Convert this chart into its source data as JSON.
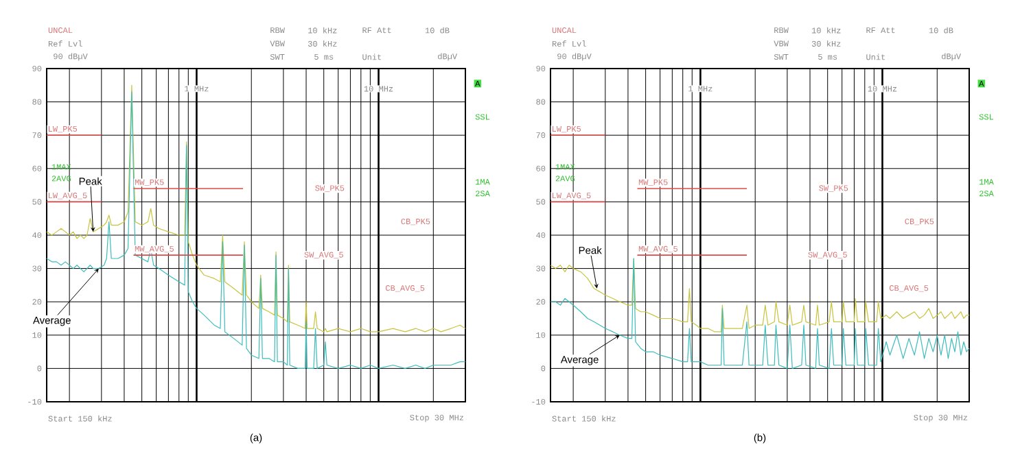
{
  "chart_data": [
    {
      "type": "line",
      "xlim": [
        0.15,
        30
      ],
      "ylim": [
        -10,
        90
      ],
      "log": "x",
      "grid": true,
      "yticks": [
        -10,
        0,
        10,
        20,
        30,
        40,
        50,
        60,
        70,
        80,
        90
      ],
      "xticks": [
        {
          "value": 0.2,
          "label": null
        },
        {
          "value": 0.3,
          "label": null
        },
        {
          "value": 0.4,
          "label": null
        },
        {
          "value": 0.5,
          "label": null
        },
        {
          "value": 0.6,
          "label": null
        },
        {
          "value": 0.7,
          "label": null
        },
        {
          "value": 0.8,
          "label": null
        },
        {
          "value": 0.9,
          "label": null
        },
        {
          "value": 1,
          "label": "1 MHz"
        },
        {
          "value": 2,
          "label": null
        },
        {
          "value": 3,
          "label": null
        },
        {
          "value": 4,
          "label": null
        },
        {
          "value": 5,
          "label": null
        },
        {
          "value": 6,
          "label": null
        },
        {
          "value": 7,
          "label": null
        },
        {
          "value": 8,
          "label": null
        },
        {
          "value": 9,
          "label": null
        },
        {
          "value": 10,
          "label": "10 MHz"
        },
        {
          "value": 20,
          "label": null
        }
      ],
      "series": [
        {
          "color": "#c8c43c",
          "x": [
            0.15,
            0.16,
            0.17,
            0.18,
            0.19,
            0.2,
            0.21,
            0.22,
            0.23,
            0.24,
            0.25,
            0.26,
            0.27,
            0.29,
            0.31,
            0.32,
            0.33,
            0.34,
            0.37,
            0.4,
            0.42,
            0.44,
            0.46,
            0.5,
            0.54,
            0.56,
            0.58,
            0.62,
            0.7,
            0.8,
            0.86,
            0.88,
            0.9,
            0.95,
            1.0,
            1.1,
            1.25,
            1.35,
            1.39,
            1.43,
            1.6,
            1.78,
            1.83,
            1.88,
            2.0,
            2.2,
            2.25,
            2.3,
            2.5,
            2.68,
            2.73,
            2.78,
            3.0,
            3.15,
            3.2,
            3.25,
            3.6,
            3.95,
            4.0,
            4.05,
            4.4,
            4.5,
            4.6,
            5.0,
            5.1,
            5.2,
            6,
            7,
            8,
            9,
            10,
            12,
            14,
            16,
            18,
            20,
            22,
            25,
            28,
            30
          ],
          "values": [
            41,
            40,
            41,
            42,
            41,
            40,
            41,
            39,
            40,
            39,
            40,
            45,
            41,
            42,
            43,
            44,
            46,
            43,
            43,
            44,
            47,
            85,
            44,
            43,
            44,
            48,
            43,
            42,
            41,
            40,
            40,
            68,
            38,
            34,
            31,
            28,
            27,
            26,
            40,
            26,
            24,
            22,
            38,
            22,
            20,
            18,
            28,
            18,
            17,
            16,
            35,
            16,
            15,
            14,
            31,
            14,
            13,
            12,
            20,
            12,
            12,
            17,
            12,
            11,
            12,
            11,
            12,
            11,
            12,
            11,
            11,
            12,
            11,
            12,
            11,
            12,
            11,
            12,
            13,
            12
          ]
        },
        {
          "color": "#3cbcbc",
          "x": [
            0.15,
            0.16,
            0.17,
            0.18,
            0.19,
            0.2,
            0.21,
            0.22,
            0.23,
            0.24,
            0.25,
            0.26,
            0.27,
            0.29,
            0.31,
            0.32,
            0.33,
            0.34,
            0.37,
            0.4,
            0.42,
            0.44,
            0.46,
            0.5,
            0.54,
            0.56,
            0.58,
            0.62,
            0.7,
            0.8,
            0.86,
            0.88,
            0.9,
            0.95,
            1.0,
            1.1,
            1.25,
            1.35,
            1.39,
            1.43,
            1.6,
            1.78,
            1.83,
            1.88,
            2.0,
            2.2,
            2.25,
            2.3,
            2.5,
            2.68,
            2.73,
            2.78,
            3.0,
            3.15,
            3.2,
            3.25,
            3.6,
            3.95,
            4.0,
            4.05,
            4.4,
            4.5,
            4.6,
            5.0,
            5.1,
            5.2,
            6,
            7,
            8,
            9,
            10,
            12,
            14,
            16,
            18,
            20,
            22,
            25,
            28,
            30
          ],
          "values": [
            33,
            32,
            32,
            31,
            32,
            31,
            30,
            31,
            30,
            29,
            30,
            31,
            30,
            30,
            31,
            33,
            44,
            33,
            33,
            34,
            36,
            83,
            34,
            33,
            32,
            36,
            31,
            30,
            28,
            26,
            25,
            67,
            23,
            20,
            18,
            16,
            13,
            12,
            38,
            11,
            9,
            7,
            37,
            6,
            4,
            3,
            27,
            3,
            3,
            2,
            34,
            2,
            2,
            1,
            30,
            1,
            0,
            0,
            14,
            0,
            0,
            12,
            0,
            1,
            8,
            1,
            0,
            1,
            0,
            1,
            0,
            1,
            0,
            1,
            0,
            1,
            1,
            1,
            2,
            2
          ]
        },
        {
          "name": "LW_PK5",
          "color": "#e04848",
          "x": [
            0.15,
            0.3
          ],
          "values": [
            70,
            70
          ]
        },
        {
          "name": "LW_AVG_5",
          "color": "#e04848",
          "x": [
            0.15,
            0.3
          ],
          "values": [
            50,
            50
          ]
        },
        {
          "name": "MW_PK5",
          "color": "#e04848",
          "x": [
            0.45,
            1.8
          ],
          "values": [
            54,
            54
          ]
        },
        {
          "name": "MW_AVG_5",
          "color": "#e04848",
          "x": [
            0.45,
            1.8
          ],
          "values": [
            34,
            34
          ]
        }
      ],
      "annotations": [
        "UNCAL",
        "Ref Lvl",
        "90 dBµV",
        "RBW",
        "10 kHz",
        "RF Att",
        "10 dB",
        "VBW",
        "30 kHz",
        "SWT",
        "5 ms",
        "Unit",
        "dBµV",
        "A",
        "SSL",
        "1MA",
        "2SA",
        "1MAX",
        "2AVG",
        "Start 150 kHz",
        "Stop 30 MHz",
        "(a)",
        "SW_PK5",
        "SW_AVG_5",
        "CB_PK5",
        "CB_AVG_5",
        {
          "text": "Peak",
          "x": 0.27,
          "y": 41
        },
        {
          "text": "Average",
          "x": 0.29,
          "y": 30
        }
      ]
    },
    {
      "type": "line",
      "xlim": [
        0.15,
        30
      ],
      "ylim": [
        -10,
        90
      ],
      "log": "x",
      "grid": true,
      "yticks": [
        -10,
        0,
        10,
        20,
        30,
        40,
        50,
        60,
        70,
        80,
        90
      ],
      "xticks": [
        {
          "value": 0.2,
          "label": null
        },
        {
          "value": 0.3,
          "label": null
        },
        {
          "value": 0.4,
          "label": null
        },
        {
          "value": 0.5,
          "label": null
        },
        {
          "value": 0.6,
          "label": null
        },
        {
          "value": 0.7,
          "label": null
        },
        {
          "value": 0.8,
          "label": null
        },
        {
          "value": 0.9,
          "label": null
        },
        {
          "value": 1,
          "label": "1 MHz"
        },
        {
          "value": 2,
          "label": null
        },
        {
          "value": 3,
          "label": null
        },
        {
          "value": 4,
          "label": null
        },
        {
          "value": 5,
          "label": null
        },
        {
          "value": 6,
          "label": null
        },
        {
          "value": 7,
          "label": null
        },
        {
          "value": 8,
          "label": null
        },
        {
          "value": 9,
          "label": null
        },
        {
          "value": 10,
          "label": "10 MHz"
        },
        {
          "value": 20,
          "label": null
        }
      ],
      "series": [
        {
          "color": "#c8c43c",
          "x": [
            0.15,
            0.16,
            0.17,
            0.18,
            0.19,
            0.2,
            0.22,
            0.24,
            0.26,
            0.28,
            0.3,
            0.33,
            0.36,
            0.4,
            0.42,
            0.43,
            0.44,
            0.47,
            0.5,
            0.55,
            0.6,
            0.7,
            0.8,
            0.85,
            0.87,
            0.89,
            0.95,
            1.0,
            1.1,
            1.2,
            1.3,
            1.32,
            1.35,
            1.5,
            1.7,
            1.8,
            1.85,
            2.0,
            2.2,
            2.27,
            2.35,
            2.55,
            2.6,
            2.7,
            3.0,
            3.1,
            3.2,
            3.6,
            3.7,
            3.8,
            4.3,
            4.4,
            4.5,
            5.1,
            5.25,
            5.4,
            6.0,
            6.1,
            6.3,
            7.0,
            7.1,
            7.3,
            8.0,
            8.1,
            8.4,
            9.3,
            9.5,
            9.8,
            10.5,
            11,
            12,
            13,
            14,
            15,
            16,
            17,
            18,
            19,
            20,
            21,
            22,
            23,
            24,
            25,
            26,
            27,
            28,
            29,
            30
          ],
          "values": [
            31,
            30,
            31,
            29,
            31,
            30,
            29,
            27,
            24,
            23,
            22,
            21,
            20,
            19,
            19,
            33,
            18,
            17,
            17,
            16,
            15,
            15,
            14,
            14,
            24,
            14,
            13,
            12,
            12,
            11,
            11,
            19,
            12,
            12,
            12,
            19,
            12,
            13,
            13,
            19,
            13,
            14,
            20,
            14,
            13,
            19,
            13,
            14,
            19,
            14,
            13,
            19,
            13,
            14,
            20,
            14,
            14,
            20,
            14,
            14,
            21,
            14,
            14,
            20,
            14,
            14,
            20,
            15,
            16,
            15,
            17,
            15,
            16,
            17,
            15,
            16,
            18,
            15,
            16,
            17,
            15,
            16,
            17,
            15,
            16,
            17,
            15,
            16,
            16
          ]
        },
        {
          "color": "#3cbcbc",
          "x": [
            0.15,
            0.16,
            0.17,
            0.18,
            0.19,
            0.2,
            0.22,
            0.24,
            0.26,
            0.28,
            0.3,
            0.33,
            0.36,
            0.4,
            0.42,
            0.43,
            0.44,
            0.47,
            0.5,
            0.55,
            0.6,
            0.7,
            0.8,
            0.85,
            0.87,
            0.89,
            0.95,
            1.0,
            1.1,
            1.2,
            1.3,
            1.32,
            1.35,
            1.5,
            1.7,
            1.8,
            1.85,
            2.0,
            2.2,
            2.27,
            2.35,
            2.55,
            2.6,
            2.7,
            3.0,
            3.1,
            3.2,
            3.6,
            3.7,
            3.8,
            4.3,
            4.4,
            4.5,
            5.1,
            5.25,
            5.4,
            6.0,
            6.1,
            6.3,
            7.0,
            7.1,
            7.3,
            8.0,
            8.1,
            8.4,
            9.3,
            9.5,
            9.8,
            10.5,
            11,
            12,
            13,
            14,
            15,
            16,
            17,
            18,
            19,
            20,
            21,
            22,
            23,
            24,
            25,
            26,
            27,
            28,
            29,
            30
          ],
          "values": [
            20,
            20,
            19,
            21,
            20,
            19,
            17,
            15,
            14,
            13,
            12,
            11,
            10,
            9,
            9,
            33,
            8,
            6,
            5,
            5,
            4,
            3,
            2,
            2,
            12,
            2,
            2,
            2,
            1,
            1,
            1,
            18,
            1,
            1,
            1,
            14,
            1,
            1,
            1,
            13,
            1,
            1,
            13,
            1,
            0,
            13,
            0,
            1,
            13,
            1,
            0,
            12,
            1,
            0,
            12,
            1,
            1,
            12,
            1,
            1,
            12,
            1,
            1,
            12,
            1,
            1,
            12,
            2,
            8,
            4,
            10,
            3,
            9,
            4,
            11,
            3,
            9,
            5,
            10,
            4,
            10,
            3,
            9,
            5,
            11,
            4,
            8,
            5,
            6
          ]
        },
        {
          "name": "LW_PK5",
          "color": "#e04848",
          "x": [
            0.15,
            0.3
          ],
          "values": [
            70,
            70
          ]
        },
        {
          "name": "LW_AVG_5",
          "color": "#e04848",
          "x": [
            0.15,
            0.3
          ],
          "values": [
            50,
            50
          ]
        },
        {
          "name": "MW_PK5",
          "color": "#e04848",
          "x": [
            0.45,
            1.8
          ],
          "values": [
            54,
            54
          ]
        },
        {
          "name": "MW_AVG_5",
          "color": "#e04848",
          "x": [
            0.45,
            1.8
          ],
          "values": [
            34,
            34
          ]
        }
      ],
      "annotations": [
        "UNCAL",
        "Ref Lvl",
        "90 dBµV",
        "RBW",
        "10 kHz",
        "RF Att",
        "10 dB",
        "VBW",
        "30 kHz",
        "SWT",
        "5 ms",
        "Unit",
        "dBµV",
        "A",
        "SSL",
        "1MA",
        "2SA",
        "1MAX",
        "2AVG",
        "Start 150 kHz",
        "Stop 30 MHz",
        "(b)",
        "SW_PK5",
        "SW_AVG_5",
        "CB_PK5",
        "CB_AVG_5",
        {
          "text": "Peak",
          "x": 0.27,
          "y": 24
        },
        {
          "text": "Average",
          "x": 0.36,
          "y": 10
        }
      ]
    }
  ]
}
